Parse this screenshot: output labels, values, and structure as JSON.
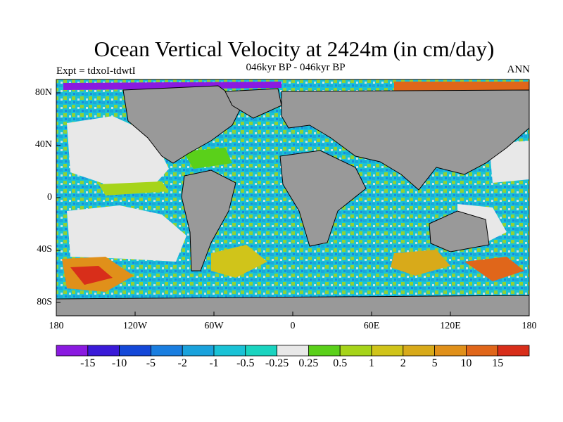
{
  "title": "Ocean Vertical Velocity at 2424m (in cm/day)",
  "subtitle": "046kyr BP - 046kyr BP",
  "experiment": "Expt = tdxoI-tdwtI",
  "period": "ANN",
  "lat_labels": [
    "80N",
    "40N",
    "0",
    "40S",
    "80S"
  ],
  "lon_labels": [
    "180",
    "120W",
    "60W",
    "0",
    "60E",
    "120E",
    "180"
  ],
  "colorbar": {
    "colors": [
      "#8a1ae0",
      "#3a1ad8",
      "#1448d8",
      "#1a7ee0",
      "#1aa2dc",
      "#1ac2d6",
      "#1ad4c0",
      "#e8e8e8",
      "#5ad01a",
      "#a6d41a",
      "#d0c41a",
      "#d8aa1a",
      "#e0901a",
      "#e0661a",
      "#d82e1a"
    ],
    "labels": [
      "-15",
      "-10",
      "-5",
      "-2",
      "-1",
      "-0.5",
      "-0.25",
      "0.25",
      "0.5",
      "1",
      "2",
      "5",
      "10",
      "15"
    ]
  },
  "land_color": "#999999"
}
